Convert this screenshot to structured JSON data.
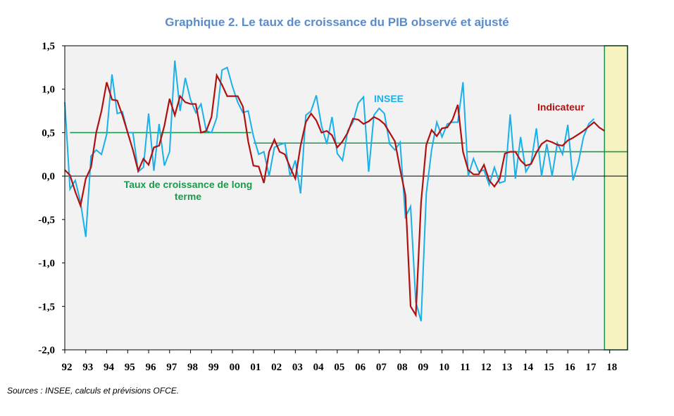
{
  "title": "Graphique  2. Le taux de croissance  du PIB observé  et ajusté",
  "source": "Sources : INSEE, calculs et prévisions OFCE.",
  "chart_data": {
    "type": "line",
    "ylim": [
      -2.0,
      1.5
    ],
    "y_ticks": [
      "1,5",
      "1,0",
      "0,5",
      "0,0",
      "-0,5",
      "-1,0",
      "-1,5",
      "-2,0"
    ],
    "x_ticks": [
      "92",
      "93",
      "94",
      "95",
      "96",
      "97",
      "98",
      "99",
      "00",
      "01",
      "02",
      "03",
      "04",
      "05",
      "06",
      "07",
      "08",
      "09",
      "10",
      "11",
      "12",
      "13",
      "14",
      "15",
      "16",
      "17",
      "18"
    ],
    "x_range": [
      1992.0,
      2018.85
    ],
    "forecast_band": [
      2017.75,
      2018.85
    ],
    "annotations": {
      "insee": "INSEE",
      "indicateur": "Indicateur",
      "long_term": "Taux de croissance de long terme"
    },
    "colors": {
      "insee": "#1ab0e8",
      "indicateur": "#b01010",
      "long_term": "#1a9a4a",
      "band": "#f7f3c0",
      "plot_bg": "#f2f2f2"
    },
    "long_term": [
      {
        "x": [
          1992.25,
          2000.9
        ],
        "y": 0.5
      },
      {
        "x": [
          2001.0,
          2011.1
        ],
        "y": 0.38
      },
      {
        "x": [
          2011.2,
          2018.85
        ],
        "y": 0.28
      }
    ],
    "series": [
      {
        "name": "INSEE",
        "x0": 1992.0,
        "step": 0.25,
        "values": [
          0.85,
          -0.15,
          -0.05,
          -0.3,
          -0.7,
          0.23,
          0.3,
          0.25,
          0.48,
          1.17,
          0.72,
          0.74,
          0.5,
          0.5,
          0.05,
          0.1,
          0.72,
          0.06,
          0.6,
          0.12,
          0.28,
          1.33,
          0.75,
          1.13,
          0.88,
          0.73,
          0.83,
          0.52,
          0.5,
          0.67,
          1.22,
          1.25,
          1.03,
          0.85,
          0.73,
          0.75,
          0.46,
          0.25,
          0.28,
          0.0,
          0.33,
          0.36,
          0.38,
          0.0,
          0.18,
          -0.2,
          0.7,
          0.75,
          0.93,
          0.58,
          0.37,
          0.68,
          0.26,
          0.18,
          0.52,
          0.62,
          0.84,
          0.91,
          0.05,
          0.7,
          0.78,
          0.72,
          0.37,
          0.3,
          0.39,
          -0.47,
          -0.35,
          -1.45,
          -1.67,
          -0.2,
          0.3,
          0.62,
          0.45,
          0.6,
          0.62,
          0.62,
          1.08,
          0.0,
          0.2,
          0.05,
          0.07,
          -0.1,
          0.1,
          -0.08,
          -0.06,
          0.71,
          -0.03,
          0.45,
          0.05,
          0.15,
          0.55,
          0.0,
          0.37,
          0.0,
          0.38,
          0.25,
          0.59,
          -0.05,
          0.15,
          0.45,
          0.6,
          0.66
        ]
      },
      {
        "name": "Indicateur",
        "x0": 1992.0,
        "step": 0.25,
        "values": [
          0.07,
          0.01,
          -0.18,
          -0.34,
          -0.03,
          0.1,
          0.5,
          0.75,
          1.08,
          0.88,
          0.87,
          0.7,
          0.5,
          0.3,
          0.06,
          0.2,
          0.13,
          0.33,
          0.35,
          0.58,
          0.89,
          0.7,
          0.92,
          0.85,
          0.83,
          0.83,
          0.5,
          0.52,
          0.68,
          1.16,
          1.05,
          0.92,
          0.92,
          0.92,
          0.8,
          0.4,
          0.12,
          0.11,
          -0.08,
          0.28,
          0.42,
          0.28,
          0.25,
          0.1,
          -0.03,
          0.35,
          0.62,
          0.72,
          0.64,
          0.5,
          0.52,
          0.47,
          0.33,
          0.4,
          0.5,
          0.66,
          0.65,
          0.6,
          0.63,
          0.68,
          0.65,
          0.6,
          0.5,
          0.4,
          0.08,
          -0.22,
          -1.5,
          -1.6,
          -0.3,
          0.36,
          0.53,
          0.46,
          0.55,
          0.56,
          0.65,
          0.82,
          0.28,
          0.07,
          0.02,
          0.02,
          0.13,
          -0.05,
          -0.12,
          -0.03,
          0.26,
          0.28,
          0.28,
          0.18,
          0.12,
          0.14,
          0.27,
          0.37,
          0.41,
          0.39,
          0.36,
          0.35,
          0.41,
          0.44,
          0.48,
          0.52,
          0.57,
          0.62,
          0.56,
          0.52
        ]
      }
    ]
  }
}
